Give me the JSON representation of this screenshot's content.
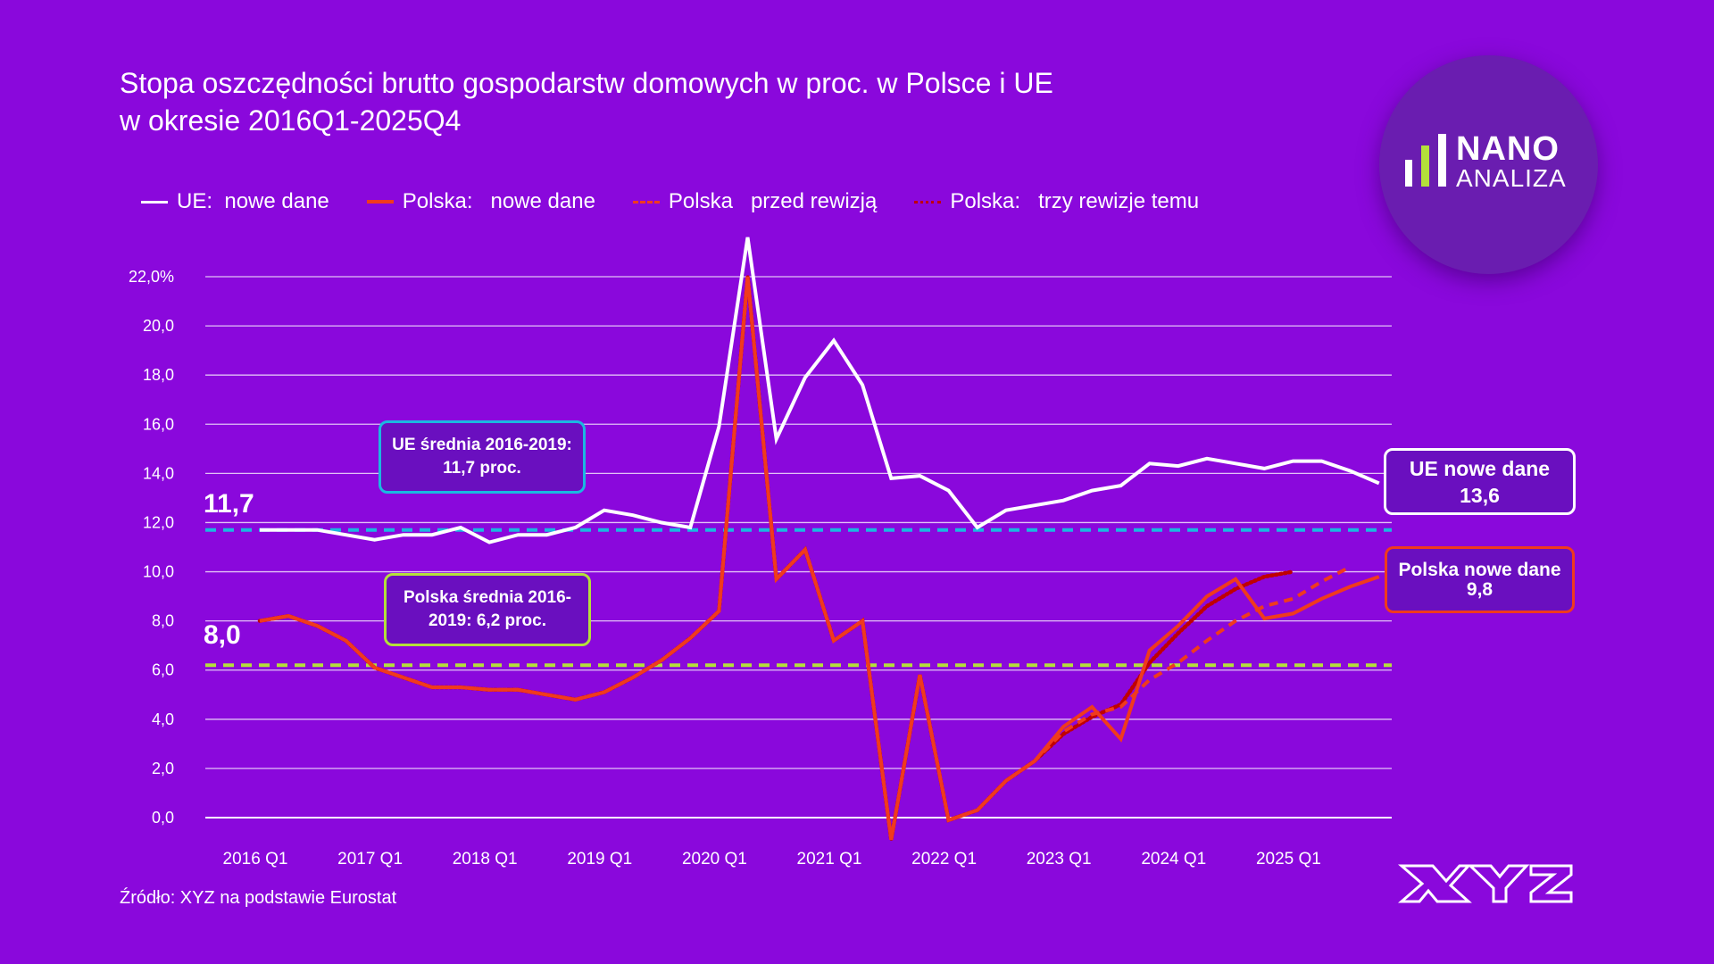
{
  "title_line1": "Stopa oszczędności brutto gospodarstw domowych w proc. w Polsce i UE",
  "title_line2": "w okresie 2016Q1-2025Q4",
  "source": "Źródło: XYZ na podstawie Eurostat",
  "logo": {
    "line1": "NANO",
    "line2": "ANALIZA",
    "brand": "XYZ"
  },
  "colors": {
    "background": "#8a08dc",
    "ue": "#ffffff",
    "pl_new": "#f03a1e",
    "pl_before": "#f03a1e",
    "pl_three": "#c00000",
    "ue_avg": "#1bb8e0",
    "pl_avg": "#b4e03a"
  },
  "annotations": {
    "ue_avg_box": {
      "line1": "UE średnia 2016-2019:",
      "line2": "11,7 proc."
    },
    "pl_avg_box": {
      "line1": "Polska średnia 2016-",
      "line2": "2019: 6,2 proc."
    },
    "ue_avg_value": "11,7",
    "pl_avg_value": "8,0",
    "ue_end_box": {
      "line1": "UE nowe dane",
      "line2": "13,6"
    },
    "pl_end_box": {
      "line1": "Polska nowe dane",
      "line2": "9,8"
    }
  },
  "chart_data": {
    "type": "line",
    "title": "Stopa oszczędności brutto gospodarstw domowych w proc. w Polsce i UE w okresie 2016Q1-2025Q4",
    "ylim": [
      0,
      22
    ],
    "yticks": [
      "0,0",
      "2,0",
      "4,0",
      "6,0",
      "8,0",
      "10,0",
      "12,0",
      "14,0",
      "16,0",
      "18,0",
      "20,0",
      "22,0%"
    ],
    "ytick_values": [
      0,
      2,
      4,
      6,
      8,
      10,
      12,
      14,
      16,
      18,
      20,
      22
    ],
    "xtick_labels": [
      "2016 Q1",
      "2017 Q1",
      "2018 Q1",
      "2019 Q1",
      "2020 Q1",
      "2021 Q1",
      "2022 Q1",
      "2023 Q1",
      "2024 Q1",
      "2025 Q1"
    ],
    "x_count": 40,
    "grid": true,
    "legend_position": "top",
    "reference_lines": [
      {
        "name": "UE średnia 2016-2019",
        "value": 11.7
      },
      {
        "name": "Polska średnia 2016-2019",
        "value": 6.2
      }
    ],
    "series": [
      {
        "name": "UE:  nowe dane",
        "style": "solid",
        "values": [
          11.7,
          11.7,
          11.7,
          11.5,
          11.3,
          11.5,
          11.5,
          11.8,
          11.2,
          11.5,
          11.5,
          11.8,
          12.5,
          12.3,
          12.0,
          11.8,
          15.9,
          23.6,
          15.4,
          17.9,
          19.4,
          17.6,
          13.8,
          13.9,
          13.3,
          11.8,
          12.5,
          12.7,
          12.9,
          13.3,
          13.5,
          14.4,
          14.3,
          14.6,
          14.4,
          14.2,
          14.5,
          14.5,
          14.1,
          13.6
        ]
      },
      {
        "name": "Polska:   nowe dane",
        "style": "solid",
        "values": [
          8.0,
          8.2,
          7.8,
          7.2,
          6.1,
          5.7,
          5.3,
          5.3,
          5.2,
          5.2,
          5.0,
          4.8,
          5.1,
          5.7,
          6.4,
          7.3,
          8.4,
          22.0,
          9.7,
          10.9,
          7.2,
          8.0,
          -0.9,
          5.8,
          -0.1,
          0.3,
          1.5,
          2.3,
          3.7,
          4.5,
          3.2,
          6.8,
          7.8,
          9.0,
          9.7,
          8.1,
          8.3,
          8.9,
          9.4,
          9.8
        ]
      },
      {
        "name": "Polska   przed rewizją",
        "style": "dashed",
        "values": [
          8.0,
          8.2,
          7.8,
          7.2,
          6.1,
          5.7,
          5.3,
          5.3,
          5.2,
          5.2,
          5.0,
          4.8,
          5.1,
          5.7,
          6.4,
          7.3,
          8.4,
          22.0,
          9.7,
          10.9,
          7.2,
          8.0,
          -0.9,
          5.8,
          -0.1,
          0.3,
          1.5,
          2.3,
          3.5,
          4.2,
          4.5,
          5.6,
          6.3,
          7.2,
          8.0,
          8.6,
          8.9,
          9.6,
          10.2,
          null
        ]
      },
      {
        "name": "Polska:   trzy rewizje temu",
        "style": "dotted",
        "values": [
          8.0,
          8.2,
          7.8,
          7.2,
          6.1,
          5.7,
          5.3,
          5.3,
          5.2,
          5.2,
          5.0,
          4.8,
          5.1,
          5.7,
          6.4,
          7.3,
          8.4,
          22.0,
          9.7,
          10.9,
          7.2,
          8.0,
          -0.9,
          5.8,
          -0.1,
          0.3,
          1.5,
          2.3,
          3.4,
          4.1,
          4.6,
          6.3,
          7.5,
          8.6,
          9.3,
          9.8,
          10.0,
          null,
          null,
          null
        ]
      }
    ]
  }
}
